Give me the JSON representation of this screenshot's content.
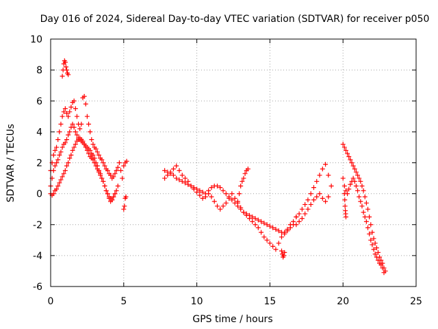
{
  "chart_data": {
    "type": "scatter",
    "title": "Day 016 of 2024, Sidereal Day-to-day VTEC variation (SDTVAR) for receiver p050",
    "xlabel": "GPS time / hours",
    "ylabel": "SDTVAR / TECUs",
    "xlim": [
      0,
      25
    ],
    "ylim": [
      -6,
      10
    ],
    "xticks": [
      0,
      5,
      10,
      15,
      20,
      25
    ],
    "yticks": [
      -6,
      -4,
      -2,
      0,
      2,
      4,
      6,
      8,
      10
    ],
    "grid": true,
    "marker": "+",
    "series": [
      {
        "name": "SDTVAR",
        "color": "#ff0000",
        "segments": [
          {
            "name": "upper-track-0-to-5h",
            "x": [
              0.0,
              0.1,
              0.2,
              0.3,
              0.4,
              0.5,
              0.6,
              0.7,
              0.8,
              0.9,
              1.0,
              1.1,
              1.2,
              1.3,
              1.4,
              1.5,
              1.6,
              1.7,
              1.8,
              1.9,
              2.0,
              2.1,
              2.2,
              2.3,
              2.4,
              2.5,
              2.6,
              2.7,
              2.8,
              2.9,
              3.0,
              3.1,
              3.2,
              3.3,
              3.4,
              3.5,
              3.6,
              3.7,
              3.8,
              3.9,
              4.0,
              4.1,
              4.2,
              4.3,
              4.4,
              4.5,
              4.6,
              4.7,
              4.8,
              4.9,
              5.0,
              5.1,
              5.2
            ],
            "y": [
              1.5,
              2.0,
              2.5,
              2.8,
              3.0,
              3.5,
              4.0,
              4.5,
              5.0,
              5.3,
              5.5,
              5.2,
              5.0,
              5.3,
              5.6,
              5.9,
              6.0,
              5.5,
              5.0,
              4.5,
              4.2,
              4.5,
              6.2,
              6.3,
              5.8,
              5.0,
              4.5,
              4.0,
              3.5,
              3.2,
              3.0,
              2.9,
              2.7,
              2.5,
              2.3,
              2.2,
              2.0,
              1.8,
              1.6,
              1.5,
              1.3,
              1.2,
              1.0,
              1.1,
              1.3,
              1.5,
              1.7,
              2.0,
              1.5,
              1.0,
              1.8,
              2.0,
              2.1
            ]
          },
          {
            "name": "middle-track-0-to-5h",
            "x": [
              0.0,
              0.1,
              0.2,
              0.3,
              0.4,
              0.5,
              0.6,
              0.7,
              0.8,
              0.9,
              1.0,
              1.1,
              1.2,
              1.3,
              1.4,
              1.5,
              1.6,
              1.7,
              1.8,
              1.9,
              2.0,
              2.1,
              2.2,
              2.3,
              2.4,
              2.5,
              2.6,
              2.7,
              2.8,
              2.9,
              3.0,
              3.1,
              3.2,
              3.3,
              3.4,
              3.5,
              3.6,
              3.7,
              3.8,
              3.9,
              4.0,
              4.1,
              4.2,
              4.3,
              4.4,
              4.5,
              4.6
            ],
            "y": [
              0.5,
              1.0,
              1.5,
              1.8,
              2.0,
              2.2,
              2.5,
              2.7,
              3.0,
              3.2,
              3.3,
              3.5,
              3.8,
              4.0,
              4.3,
              4.5,
              4.3,
              4.0,
              3.8,
              3.6,
              3.5,
              3.4,
              3.3,
              3.2,
              3.1,
              3.0,
              2.9,
              2.8,
              2.6,
              2.5,
              2.3,
              2.0,
              1.8,
              1.5,
              1.3,
              1.0,
              0.8,
              0.5,
              0.2,
              0.0,
              -0.2,
              -0.3,
              -0.4,
              -0.2,
              0.0,
              0.2,
              0.5
            ]
          },
          {
            "name": "lower-track-0-to-5h",
            "x": [
              0.0,
              0.1,
              0.2,
              0.3,
              0.4,
              0.5,
              0.6,
              0.7,
              0.8,
              0.9,
              1.0,
              1.1,
              1.2,
              1.3,
              1.4,
              1.5,
              1.6,
              1.7,
              1.8,
              1.9,
              2.0,
              2.1,
              2.2,
              2.3,
              2.4,
              2.5,
              2.6,
              2.7,
              2.8,
              2.9,
              3.0,
              3.1,
              3.2,
              3.3,
              3.4,
              3.5,
              3.6,
              3.7,
              3.8,
              3.9,
              4.0,
              4.1,
              4.2,
              4.3,
              4.4
            ],
            "y": [
              0.0,
              -0.1,
              0.0,
              0.2,
              0.3,
              0.5,
              0.7,
              0.9,
              1.1,
              1.3,
              1.5,
              1.8,
              2.0,
              2.3,
              2.5,
              2.8,
              3.0,
              3.2,
              3.4,
              3.5,
              3.6,
              3.5,
              3.4,
              3.2,
              3.0,
              2.8,
              2.6,
              2.4,
              2.3,
              2.2,
              2.0,
              1.8,
              1.6,
              1.4,
              1.2,
              1.0,
              0.8,
              0.5,
              0.2,
              0.0,
              -0.3,
              -0.5,
              -0.4,
              -0.2,
              0.0
            ]
          },
          {
            "name": "spike-near-1h",
            "x": [
              0.8,
              0.85,
              0.9,
              0.95,
              1.0,
              1.05,
              1.1,
              1.15,
              1.2
            ],
            "y": [
              7.6,
              8.0,
              8.4,
              8.6,
              8.5,
              8.2,
              8.0,
              7.8,
              7.7
            ]
          },
          {
            "name": "stray-points-near-5h",
            "x": [
              5.0,
              5.05,
              5.1,
              5.15
            ],
            "y": [
              -1.0,
              -0.8,
              -0.3,
              -0.2
            ]
          },
          {
            "name": "midday-track-a",
            "x": [
              7.8,
              8.0,
              8.2,
              8.4,
              8.6,
              8.8,
              9.0,
              9.2,
              9.4,
              9.6,
              9.8,
              10.0,
              10.2,
              10.4,
              10.6,
              10.8,
              11.0,
              11.2,
              11.4,
              11.6,
              11.8,
              12.0,
              12.2,
              12.4,
              12.6,
              12.8,
              13.0,
              13.2,
              13.4,
              13.6,
              13.8,
              14.0,
              14.2,
              14.4,
              14.6,
              14.8,
              15.0,
              15.2,
              15.4,
              15.6,
              15.8,
              16.0,
              16.2,
              16.4,
              16.6,
              16.8
            ],
            "y": [
              1.0,
              1.2,
              1.4,
              1.6,
              1.8,
              1.5,
              1.2,
              1.0,
              0.8,
              0.5,
              0.3,
              0.1,
              -0.1,
              -0.3,
              -0.2,
              0.0,
              -0.2,
              -0.5,
              -0.8,
              -1.0,
              -0.8,
              -0.6,
              -0.3,
              0.0,
              -0.3,
              -0.6,
              -0.9,
              -1.2,
              -1.4,
              -1.6,
              -1.8,
              -2.0,
              -2.2,
              -2.5,
              -2.8,
              -3.0,
              -3.2,
              -3.4,
              -3.6,
              -3.2,
              -2.8,
              -2.5,
              -2.3,
              -2.0,
              -1.8,
              -1.5
            ]
          },
          {
            "name": "midday-track-b",
            "x": [
              7.8,
              8.0,
              8.2,
              8.4,
              8.6,
              8.8,
              9.0,
              9.2,
              9.4,
              9.6,
              9.8,
              10.0,
              10.2,
              10.4,
              10.6,
              10.8,
              11.0,
              11.2,
              11.4,
              11.6,
              11.8,
              12.0,
              12.2,
              12.4,
              12.6,
              12.8,
              13.0,
              13.2,
              13.4,
              13.6,
              13.8,
              14.0,
              14.2,
              14.4,
              14.6,
              14.8,
              15.0,
              15.2,
              15.4,
              15.6,
              15.8,
              16.0,
              16.2,
              16.4,
              16.6
            ],
            "y": [
              1.5,
              1.4,
              1.3,
              1.2,
              1.0,
              0.9,
              0.8,
              0.7,
              0.6,
              0.5,
              0.4,
              0.3,
              0.2,
              0.1,
              0.0,
              0.2,
              0.4,
              0.5,
              0.5,
              0.4,
              0.2,
              0.0,
              -0.2,
              -0.4,
              -0.6,
              -0.8,
              -1.0,
              -1.2,
              -1.3,
              -1.4,
              -1.5,
              -1.6,
              -1.7,
              -1.8,
              -1.9,
              -2.0,
              -2.1,
              -2.2,
              -2.3,
              -2.4,
              -2.5,
              -2.6,
              -2.4,
              -2.2,
              -2.0
            ]
          },
          {
            "name": "midday-spike-near-13h",
            "x": [
              12.8,
              12.9,
              13.0,
              13.1,
              13.2,
              13.3,
              13.4,
              13.5
            ],
            "y": [
              -0.5,
              0.0,
              0.5,
              0.8,
              1.0,
              1.3,
              1.5,
              1.6
            ]
          },
          {
            "name": "dip-near-16h",
            "x": [
              15.8,
              15.85,
              15.9,
              15.95,
              16.0
            ],
            "y": [
              -3.7,
              -3.9,
              -4.1,
              -4.0,
              -3.8
            ]
          },
          {
            "name": "evening-track",
            "x": [
              16.8,
              17.0,
              17.2,
              17.4,
              17.6,
              17.8,
              18.0,
              18.2,
              18.4,
              18.6,
              18.8,
              19.0,
              19.2
            ],
            "y": [
              -1.5,
              -1.3,
              -1.0,
              -0.7,
              -0.4,
              0.0,
              0.4,
              0.8,
              1.2,
              1.6,
              1.9,
              1.2,
              0.5
            ]
          },
          {
            "name": "evening-track-b",
            "x": [
              16.8,
              17.0,
              17.2,
              17.4,
              17.6,
              17.8,
              18.0,
              18.2,
              18.4,
              18.6,
              18.8,
              19.0
            ],
            "y": [
              -2.0,
              -1.8,
              -1.6,
              -1.3,
              -1.0,
              -0.7,
              -0.4,
              -0.2,
              0.0,
              -0.3,
              -0.5,
              -0.2
            ]
          },
          {
            "name": "late-track-a",
            "x": [
              20.0,
              20.1,
              20.2,
              20.3,
              20.4,
              20.5,
              20.6,
              20.7,
              20.8,
              20.9,
              21.0,
              21.1,
              21.2,
              21.3,
              21.4,
              21.5,
              21.6,
              21.7,
              21.8,
              21.9,
              22.0,
              22.1,
              22.2,
              22.3,
              22.4,
              22.5,
              22.6,
              22.7,
              22.8,
              22.9
            ],
            "y": [
              3.2,
              3.0,
              2.8,
              2.6,
              2.4,
              2.2,
              2.0,
              1.8,
              1.6,
              1.4,
              1.2,
              1.0,
              0.8,
              0.5,
              0.2,
              -0.2,
              -0.6,
              -1.0,
              -1.5,
              -2.0,
              -2.5,
              -2.9,
              -3.2,
              -3.5,
              -3.8,
              -4.1,
              -4.3,
              -4.5,
              -4.8,
              -5.0
            ]
          },
          {
            "name": "late-track-b",
            "x": [
              20.0,
              20.1,
              20.2,
              20.3,
              20.4,
              20.5,
              20.6,
              20.7,
              20.8,
              20.9,
              21.0,
              21.1,
              21.2,
              21.3,
              21.4,
              21.5,
              21.6,
              21.7,
              21.8,
              21.9,
              22.0,
              22.1,
              22.2,
              22.3,
              22.4,
              22.5,
              22.6,
              22.7,
              22.8
            ],
            "y": [
              1.0,
              0.5,
              0.2,
              0.0,
              0.3,
              0.6,
              0.8,
              1.0,
              0.8,
              0.5,
              0.2,
              -0.2,
              -0.5,
              -0.8,
              -1.2,
              -1.5,
              -1.8,
              -2.2,
              -2.6,
              -3.0,
              -3.3,
              -3.6,
              -3.9,
              -4.1,
              -4.3,
              -4.5,
              -4.6,
              -4.8,
              -5.1
            ]
          },
          {
            "name": "late-drop-near-20h",
            "x": [
              20.1,
              20.12,
              20.14,
              20.16,
              20.18,
              20.2
            ],
            "y": [
              0.0,
              -0.4,
              -0.8,
              -1.1,
              -1.3,
              -1.5
            ]
          }
        ]
      }
    ]
  }
}
